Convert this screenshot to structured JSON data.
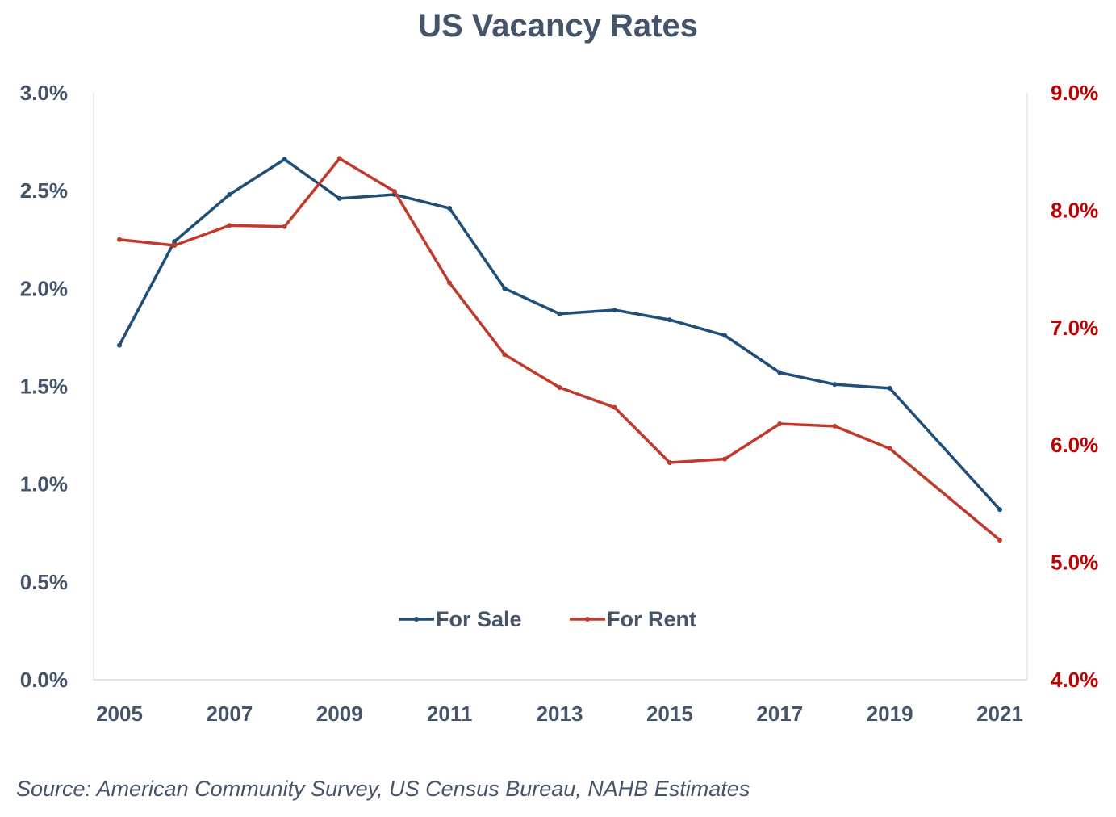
{
  "chart_data": {
    "type": "line",
    "title": "US Vacancy Rates",
    "x": [
      2005,
      2006,
      2007,
      2008,
      2009,
      2010,
      2011,
      2012,
      2013,
      2014,
      2015,
      2016,
      2017,
      2018,
      2019,
      2021
    ],
    "x_tick_labels": [
      "2005",
      "2007",
      "2009",
      "2011",
      "2013",
      "2015",
      "2017",
      "2019",
      "2021"
    ],
    "y_left": {
      "ylim": [
        0.0,
        3.0
      ],
      "tick_labels": [
        "0.0%",
        "0.5%",
        "1.0%",
        "1.5%",
        "2.0%",
        "2.5%",
        "3.0%"
      ],
      "color": "#44546a"
    },
    "y_right": {
      "ylim": [
        4.0,
        9.0
      ],
      "tick_labels": [
        "4.0%",
        "5.0%",
        "6.0%",
        "7.0%",
        "8.0%",
        "9.0%"
      ],
      "color": "#c00000"
    },
    "series": [
      {
        "name": "For Sale",
        "axis": "left",
        "color": "#1f4e79",
        "values": [
          1.71,
          2.24,
          2.48,
          2.66,
          2.46,
          2.48,
          2.41,
          2.0,
          1.87,
          1.89,
          1.84,
          1.76,
          1.57,
          1.51,
          1.49,
          0.87
        ]
      },
      {
        "name": "For Rent",
        "axis": "right",
        "color": "#c0392b",
        "values": [
          7.75,
          7.7,
          7.87,
          7.86,
          8.44,
          8.16,
          7.38,
          6.77,
          6.49,
          6.32,
          5.85,
          5.88,
          6.18,
          6.16,
          5.97,
          5.19
        ]
      }
    ],
    "grid": false,
    "legend": "bottom-center"
  },
  "source_note": "Source: American Community Survey, US Census Bureau, NAHB Estimates"
}
